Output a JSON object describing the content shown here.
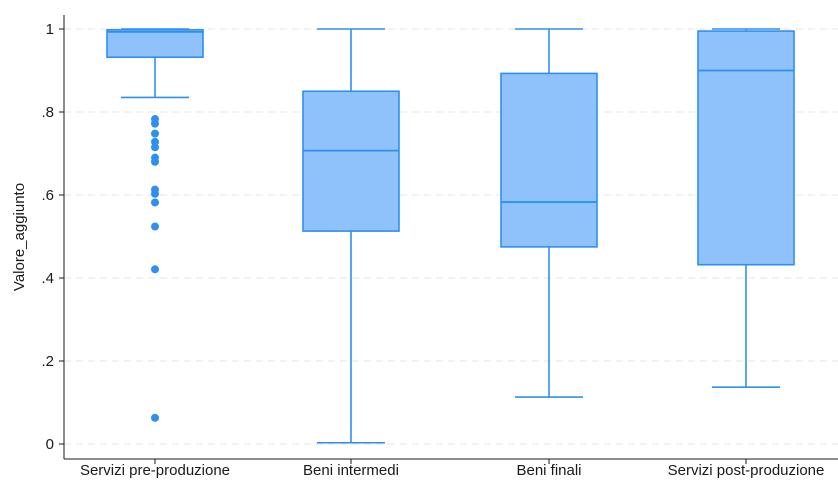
{
  "chart_data": {
    "type": "boxplot",
    "ylabel": "Valore_aggiunto",
    "xlabel": "",
    "ylim": [
      0,
      1
    ],
    "yticks": [
      0,
      0.2,
      0.4,
      0.6,
      0.8,
      1
    ],
    "ytick_labels": [
      "0",
      ".2",
      ".4",
      ".6",
      ".8",
      "1"
    ],
    "grid": true,
    "legend": "none",
    "colors": {
      "box_fill": "#8fc2fb",
      "box_stroke": "#2e8ff2",
      "outlier": "#2e8ff2"
    },
    "categories": [
      "Servizi pre-produzione",
      "Beni intermedi",
      "Beni finali",
      "Servizi post-produzione"
    ],
    "boxes": [
      {
        "category": "Servizi pre-produzione",
        "whisker_low": 0.835,
        "q1": 0.932,
        "median": 0.993,
        "q3": 0.998,
        "whisker_high": 1.0,
        "outliers": [
          0.783,
          0.772,
          0.748,
          0.728,
          0.715,
          0.69,
          0.68,
          0.613,
          0.603,
          0.582,
          0.524,
          0.421,
          0.063
        ]
      },
      {
        "category": "Beni intermedi",
        "whisker_low": 0.003,
        "q1": 0.513,
        "median": 0.707,
        "q3": 0.85,
        "whisker_high": 1.0,
        "outliers": []
      },
      {
        "category": "Beni finali",
        "whisker_low": 0.113,
        "q1": 0.475,
        "median": 0.583,
        "q3": 0.893,
        "whisker_high": 1.0,
        "outliers": []
      },
      {
        "category": "Servizi post-produzione",
        "whisker_low": 0.137,
        "q1": 0.432,
        "median": 0.9,
        "q3": 0.995,
        "whisker_high": 1.0,
        "outliers": []
      }
    ]
  }
}
